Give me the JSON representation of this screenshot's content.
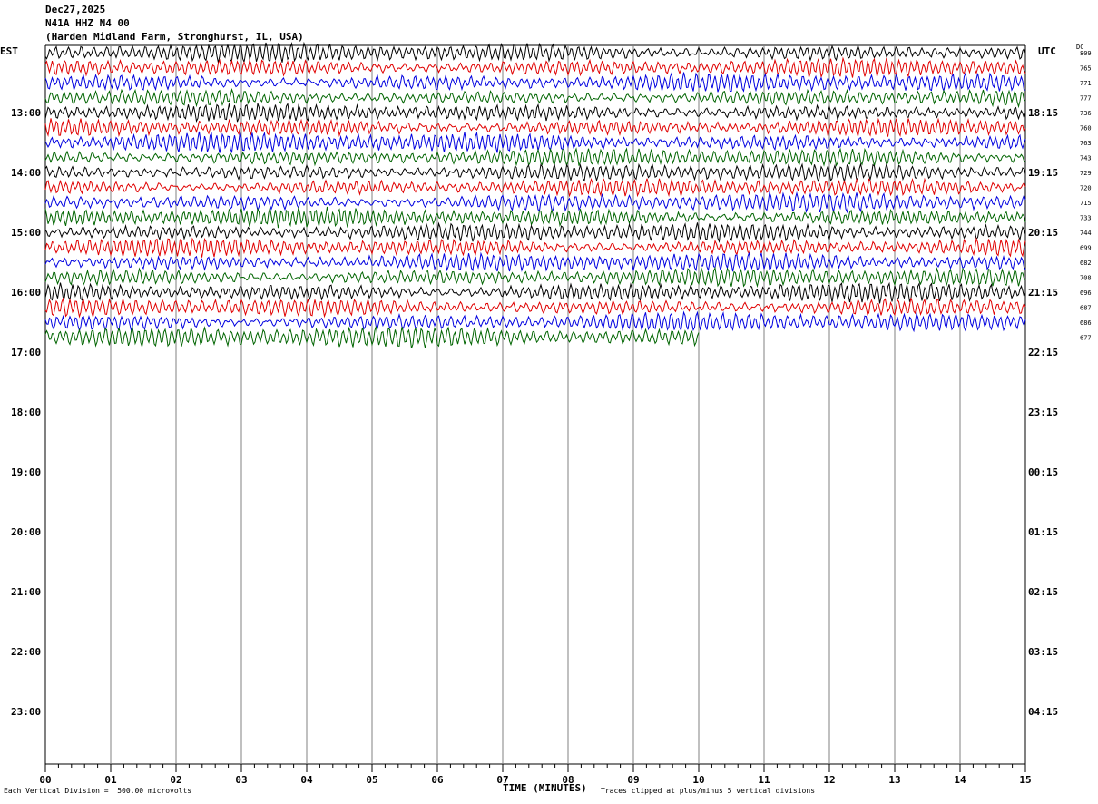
{
  "header": {
    "date": "Dec27,2025",
    "station": "N41A HHZ N4 00",
    "location": "(Harden Midland Farm, Stronghurst, IL, USA)"
  },
  "left_tz": "EST",
  "right_tz": "UTC",
  "dc_label": "DC",
  "footer": {
    "scale_note": "Each Vertical Division =  500.00 microvolts",
    "xlabel": "TIME (MINUTES)",
    "clip_note": "Traces clipped at plus/minus 5 vertical divisions"
  },
  "colors": {
    "trace_cycle": [
      "#000000",
      "#e00000",
      "#0000e0",
      "#006400"
    ],
    "grid": "#808080"
  },
  "chart_data": {
    "type": "line",
    "title": "",
    "xlabel": "TIME (MINUTES)",
    "x_ticks": [
      "00",
      "01",
      "02",
      "03",
      "04",
      "05",
      "06",
      "07",
      "08",
      "09",
      "10",
      "11",
      "12",
      "13",
      "14",
      "15"
    ],
    "xlim": [
      0,
      15
    ],
    "left_hour_labels": [
      "13:00",
      "14:00",
      "15:00",
      "16:00",
      "17:00",
      "18:00",
      "19:00",
      "20:00",
      "21:00",
      "22:00",
      "23:00"
    ],
    "right_hour_labels": [
      "18:15",
      "19:15",
      "20:15",
      "21:15",
      "22:15",
      "23:15",
      "00:15",
      "01:15",
      "02:15",
      "03:15",
      "04:15"
    ],
    "series": [
      {
        "dc": "809",
        "end_minute": 15
      },
      {
        "dc": "765",
        "end_minute": 15
      },
      {
        "dc": "771",
        "end_minute": 15
      },
      {
        "dc": "777",
        "end_minute": 15
      },
      {
        "dc": "736",
        "end_minute": 15
      },
      {
        "dc": "760",
        "end_minute": 15
      },
      {
        "dc": "763",
        "end_minute": 15
      },
      {
        "dc": "743",
        "end_minute": 15
      },
      {
        "dc": "729",
        "end_minute": 15
      },
      {
        "dc": "720",
        "end_minute": 15
      },
      {
        "dc": "715",
        "end_minute": 15
      },
      {
        "dc": "733",
        "end_minute": 15
      },
      {
        "dc": "744",
        "end_minute": 15
      },
      {
        "dc": "699",
        "end_minute": 15
      },
      {
        "dc": "682",
        "end_minute": 15
      },
      {
        "dc": "708",
        "end_minute": 15
      },
      {
        "dc": "696",
        "end_minute": 15
      },
      {
        "dc": "687",
        "end_minute": 15
      },
      {
        "dc": "686",
        "end_minute": 15
      },
      {
        "dc": "677",
        "end_minute": 10
      }
    ]
  }
}
